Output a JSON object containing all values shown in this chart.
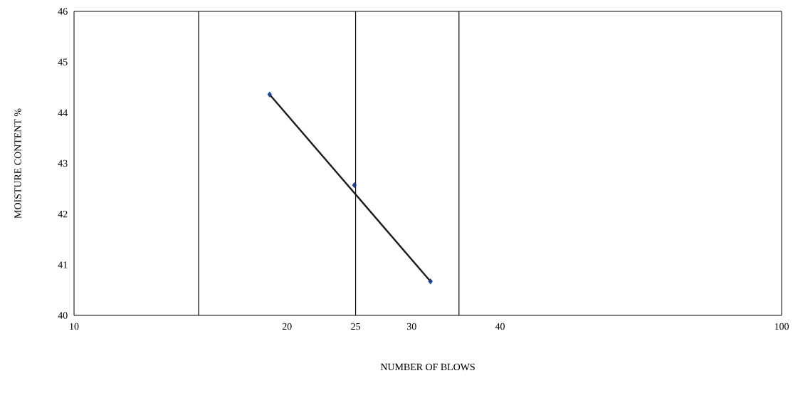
{
  "chart_data": {
    "type": "scatter",
    "xlabel": "NUMBER OF BLOWS",
    "ylabel": "MOISTURE CONTENT %",
    "log": "x",
    "xlim": [
      10,
      100
    ],
    "xticks": [
      10,
      20,
      25,
      30,
      40,
      100
    ],
    "ylim": [
      40,
      46
    ],
    "yticks": [
      40,
      41,
      42,
      43,
      44,
      45,
      46
    ],
    "series": [
      {
        "color": "#1f3f99",
        "marker": "diamond",
        "x": [
          18.9,
          24.9,
          31.9
        ],
        "values": [
          44.36,
          42.57,
          40.67
        ]
      },
      {
        "type": "line",
        "color": "#1a1a1a",
        "marker": "none",
        "x": [
          18.9,
          31.9
        ],
        "values": [
          44.36,
          40.67
        ]
      }
    ],
    "ref_lines": [
      {
        "axis": "x",
        "value": 15,
        "color": "#000000"
      },
      {
        "axis": "x",
        "value": 25,
        "color": "#000000"
      },
      {
        "axis": "x",
        "value": 35,
        "color": "#000000"
      }
    ],
    "grid": false
  }
}
